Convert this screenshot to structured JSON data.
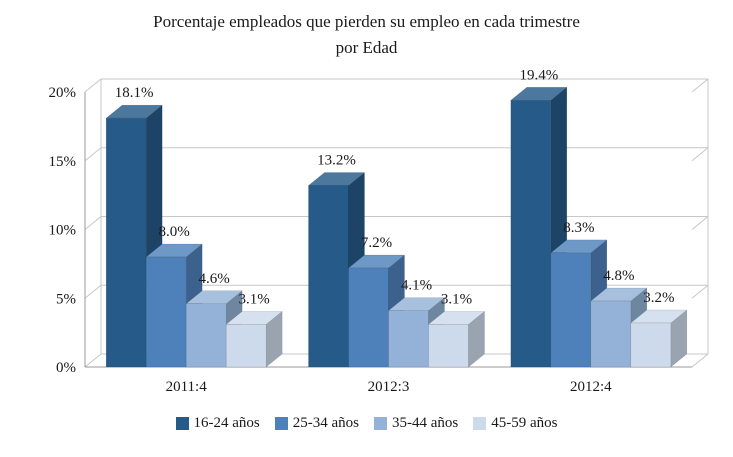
{
  "chart_data": {
    "type": "bar",
    "title": "Porcentaje empleados que pierden su empleo en cada trimestre",
    "subtitle": "por Edad",
    "categories": [
      "2011:4",
      "2012:3",
      "2012:4"
    ],
    "series": [
      {
        "name": "16-24 años",
        "color": "#265A88",
        "values": [
          18.1,
          13.2,
          19.4
        ]
      },
      {
        "name": "25-34 años",
        "color": "#4E81BA",
        "values": [
          8.0,
          7.2,
          8.3
        ]
      },
      {
        "name": "35-44 años",
        "color": "#94B2D7",
        "values": [
          4.6,
          4.1,
          4.8
        ]
      },
      {
        "name": "45-59 años",
        "color": "#CDDAEB",
        "values": [
          3.1,
          3.1,
          3.2
        ]
      }
    ],
    "xlabel": "",
    "ylabel": "",
    "ylim": [
      0,
      20
    ],
    "ytick_values": [
      0,
      5,
      10,
      15,
      20
    ],
    "ytick_labels": [
      "0%",
      "5%",
      "10%",
      "15%",
      "20%"
    ],
    "grid": true,
    "style_3d": true,
    "value_labels": true,
    "legend_position": "bottom",
    "colors": {
      "gridline": "#c7c7c7",
      "axis": "#9a9a9a",
      "text": "#1a1a1a"
    }
  }
}
